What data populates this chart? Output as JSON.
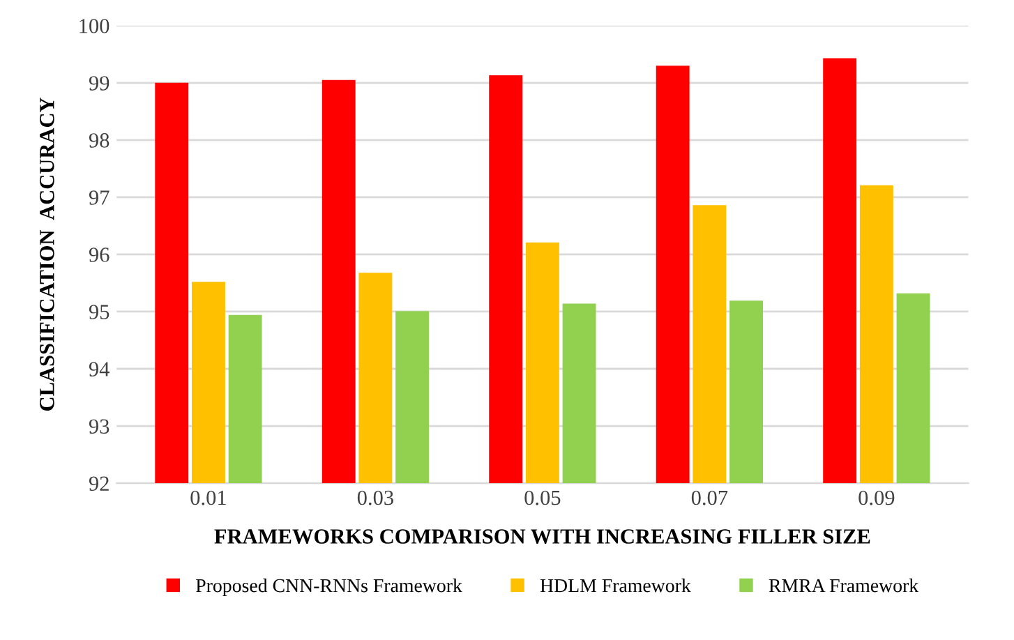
{
  "chart_data": {
    "type": "bar",
    "xlabel": "FRAMEWORKS COMPARISON WITH INCREASING FILLER SIZE",
    "ylabel": "CLASSIFICATION  ACCURACY",
    "categories": [
      "0.01",
      "0.03",
      "0.05",
      "0.07",
      "0.09"
    ],
    "series": [
      {
        "name": "Proposed CNN-RNNs Framework",
        "color": "#ff0000",
        "values": [
          99.0,
          99.05,
          99.13,
          99.3,
          99.43
        ]
      },
      {
        "name": "HDLM Framework",
        "color": "#ffc000",
        "values": [
          95.52,
          95.68,
          96.21,
          96.86,
          97.21
        ]
      },
      {
        "name": "RMRA Framework",
        "color": "#92d050",
        "values": [
          94.94,
          95.01,
          95.14,
          95.19,
          95.32
        ]
      }
    ],
    "ylim": [
      92,
      100
    ],
    "yticks": [
      92,
      93,
      94,
      95,
      96,
      97,
      98,
      99,
      100
    ],
    "grid": "y",
    "legend": "bottom"
  }
}
